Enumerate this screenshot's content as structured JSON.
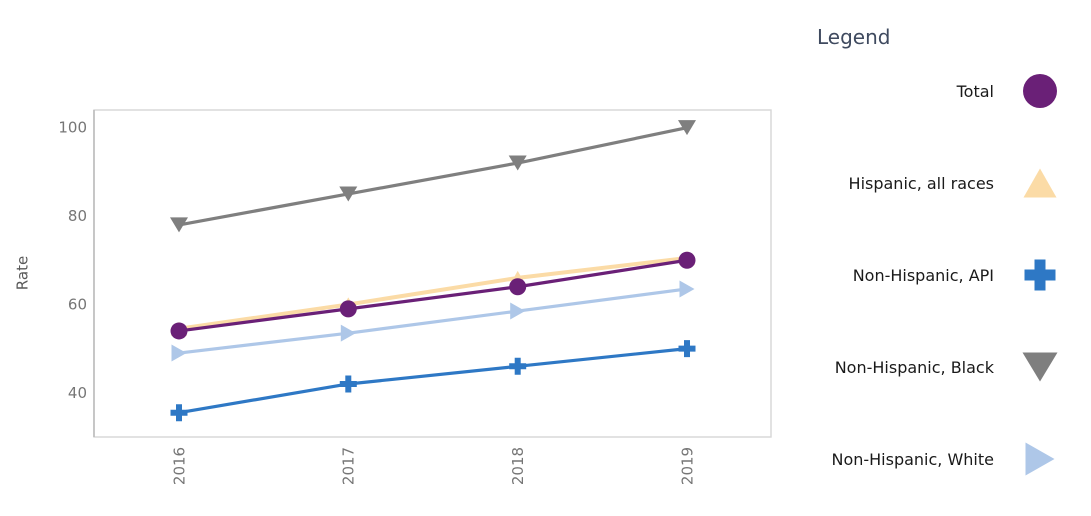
{
  "chart_data": {
    "type": "line",
    "title": "",
    "xlabel": "",
    "ylabel": "Rate",
    "categories": [
      "2016",
      "2017",
      "2018",
      "2019"
    ],
    "yticks": [
      40,
      60,
      80,
      100
    ],
    "ylim": [
      30,
      104
    ],
    "grid": false,
    "legend_position": "right",
    "series": [
      {
        "name": "Total",
        "marker": "circle",
        "color": "#6A2077",
        "values": [
          54,
          59,
          64,
          70
        ]
      },
      {
        "name": "Hispanic, all races",
        "marker": "triangle-up",
        "color": "#FBDBA6",
        "values": [
          54.5,
          60,
          66,
          70.5
        ]
      },
      {
        "name": "Non-Hispanic, API",
        "marker": "plus",
        "color": "#2E78C5",
        "values": [
          35.5,
          42,
          46,
          50
        ]
      },
      {
        "name": "Non-Hispanic, Black",
        "marker": "triangle-down",
        "color": "#7F7F7F",
        "values": [
          78,
          85,
          92,
          100
        ]
      },
      {
        "name": "Non-Hispanic, White",
        "marker": "triangle-right",
        "color": "#AEC7E8",
        "values": [
          49,
          53.5,
          58.5,
          63.5
        ]
      }
    ]
  },
  "legend": {
    "title": "Legend"
  },
  "colors": {
    "axis_text": "#767676",
    "axis_title_text": "#595959",
    "plot_border": "#d6d6d6",
    "y_axis_line": "#bdbdbd",
    "legend_title": "#3f4a5f",
    "legend_label": "#1a1a1a",
    "background": "#ffffff"
  }
}
